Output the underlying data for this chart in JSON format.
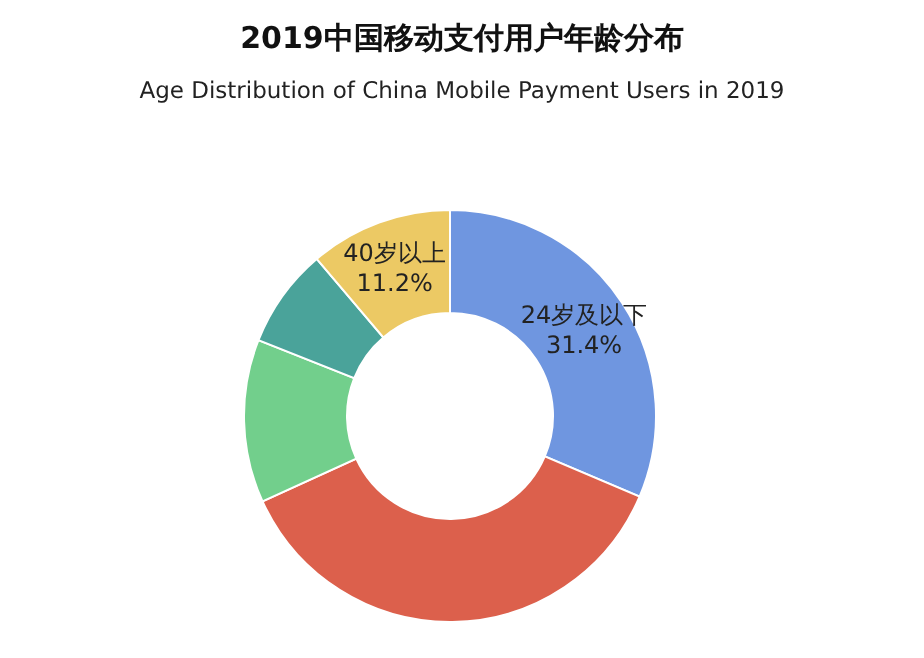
{
  "chart_data": {
    "type": "donut",
    "title": "2019中国移动支付用户年龄分布",
    "subtitle": "Age Distribution of China Mobile Payment Users in 2019",
    "categories": [
      "24岁及以下",
      null,
      null,
      null,
      "40岁以上"
    ],
    "values": [
      31.4,
      36.8,
      12.8,
      7.8,
      11.2
    ],
    "value_labels": [
      "31.4%",
      null,
      null,
      null,
      "11.2%"
    ],
    "colors": [
      "#6f96e0",
      "#dc604c",
      "#72cf8c",
      "#4aa39a",
      "#ecc964"
    ]
  }
}
